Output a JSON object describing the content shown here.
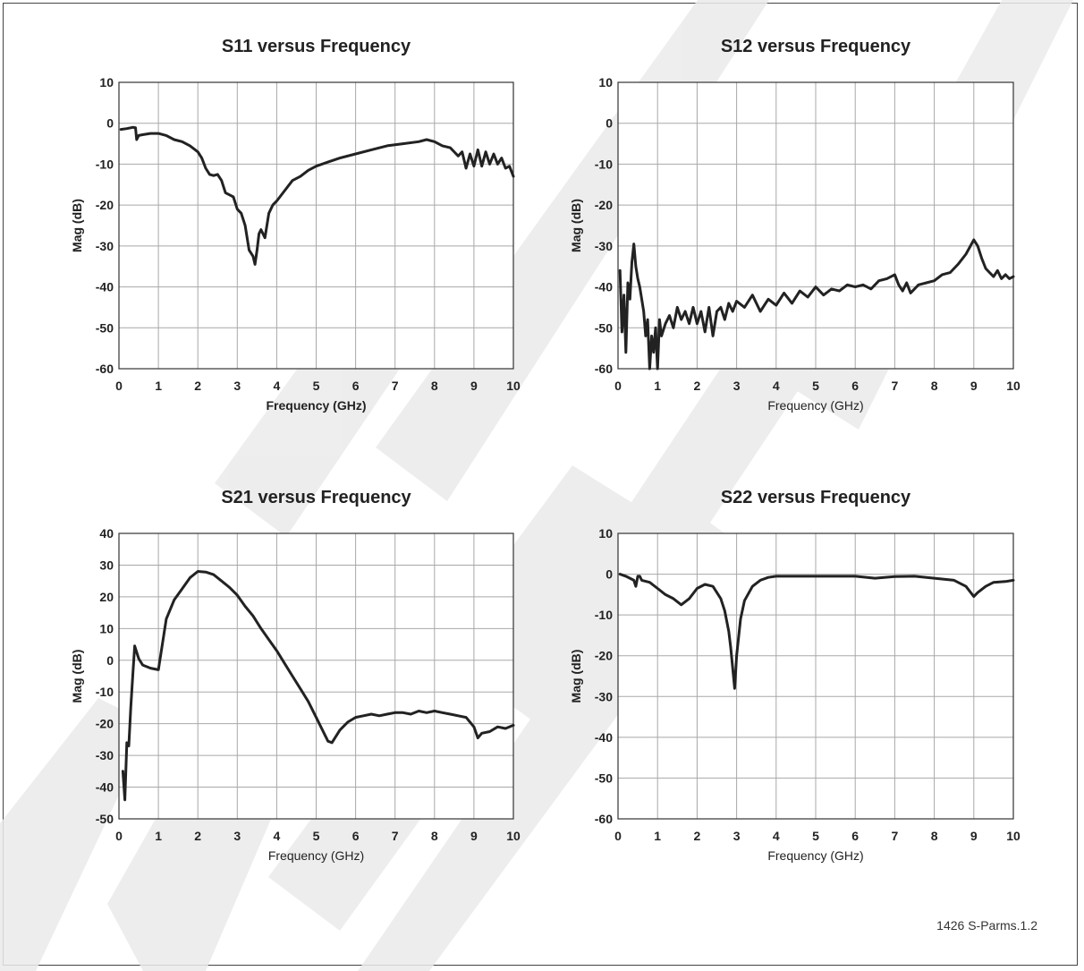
{
  "footer_label": "1426 S-Parms.1.2",
  "colors": {
    "line": "#222222",
    "grid": "#a8a8a8",
    "frame": "#333333",
    "watermark": "#e9e9e9"
  },
  "chart_data": [
    {
      "type": "line",
      "title": "S11 versus Frequency",
      "xlabel": "Frequency (GHz)",
      "xlabel_bold": true,
      "ylabel": "Mag (dB)",
      "xlim": [
        0,
        10
      ],
      "ylim": [
        -60,
        10
      ],
      "xticks": [
        0,
        1,
        2,
        3,
        4,
        5,
        6,
        7,
        8,
        9,
        10
      ],
      "yticks": [
        10,
        0,
        -10,
        -20,
        -30,
        -40,
        -50,
        -60
      ],
      "grid": true,
      "series": [
        {
          "x": [
            0.05,
            0.2,
            0.35,
            0.42,
            0.45,
            0.5,
            0.6,
            0.8,
            1.0,
            1.2,
            1.4,
            1.6,
            1.8,
            2.0,
            2.1,
            2.2,
            2.3,
            2.4,
            2.5,
            2.6,
            2.7,
            2.8,
            2.9,
            3.0,
            3.1,
            3.2,
            3.3,
            3.4,
            3.45,
            3.5,
            3.55,
            3.6,
            3.7,
            3.8,
            3.9,
            4.0,
            4.2,
            4.4,
            4.6,
            4.8,
            5.0,
            5.3,
            5.6,
            6.0,
            6.4,
            6.8,
            7.2,
            7.6,
            7.8,
            8.0,
            8.2,
            8.4,
            8.6,
            8.7,
            8.8,
            8.9,
            9.0,
            9.1,
            9.2,
            9.3,
            9.4,
            9.5,
            9.6,
            9.7,
            9.8,
            9.9,
            10.0
          ],
          "y": [
            -1.5,
            -1.3,
            -1.0,
            -1.1,
            -4.0,
            -3.0,
            -2.8,
            -2.5,
            -2.5,
            -3.0,
            -4.0,
            -4.5,
            -5.5,
            -7.0,
            -8.5,
            -11.0,
            -12.5,
            -12.8,
            -12.5,
            -14.0,
            -17.0,
            -17.5,
            -18.0,
            -21.0,
            -22.0,
            -25.0,
            -31.0,
            -32.5,
            -34.5,
            -31.0,
            -27.0,
            -26.0,
            -28.0,
            -22.0,
            -20.0,
            -19.0,
            -16.5,
            -14.0,
            -13.0,
            -11.5,
            -10.5,
            -9.5,
            -8.5,
            -7.5,
            -6.5,
            -5.5,
            -5.0,
            -4.5,
            -4.0,
            -4.5,
            -5.5,
            -6.0,
            -8.0,
            -7.0,
            -11.0,
            -7.5,
            -10.5,
            -6.5,
            -10.5,
            -7.0,
            -10.0,
            -7.5,
            -10.0,
            -8.5,
            -11.0,
            -10.5,
            -13.0
          ]
        }
      ]
    },
    {
      "type": "line",
      "title": "S12 versus Frequency",
      "xlabel": "Frequency (GHz)",
      "xlabel_bold": false,
      "ylabel": "Mag (dB)",
      "xlim": [
        0,
        10
      ],
      "ylim": [
        -60,
        10
      ],
      "xticks": [
        0,
        1,
        2,
        3,
        4,
        5,
        6,
        7,
        8,
        9,
        10
      ],
      "yticks": [
        10,
        0,
        -10,
        -20,
        -30,
        -40,
        -50,
        -60
      ],
      "grid": true,
      "series": [
        {
          "x": [
            0.05,
            0.1,
            0.15,
            0.2,
            0.25,
            0.3,
            0.35,
            0.4,
            0.45,
            0.5,
            0.55,
            0.6,
            0.65,
            0.7,
            0.75,
            0.8,
            0.85,
            0.9,
            0.95,
            1.0,
            1.05,
            1.1,
            1.2,
            1.3,
            1.4,
            1.5,
            1.6,
            1.7,
            1.8,
            1.9,
            2.0,
            2.1,
            2.2,
            2.3,
            2.4,
            2.5,
            2.6,
            2.7,
            2.8,
            2.9,
            3.0,
            3.2,
            3.4,
            3.6,
            3.8,
            4.0,
            4.2,
            4.4,
            4.6,
            4.8,
            5.0,
            5.2,
            5.4,
            5.6,
            5.8,
            6.0,
            6.2,
            6.4,
            6.6,
            6.8,
            7.0,
            7.1,
            7.2,
            7.3,
            7.4,
            7.6,
            7.8,
            8.0,
            8.2,
            8.4,
            8.6,
            8.8,
            9.0,
            9.1,
            9.2,
            9.3,
            9.4,
            9.5,
            9.6,
            9.7,
            9.8,
            9.9,
            10.0
          ],
          "y": [
            -36.0,
            -51.0,
            -42.0,
            -56.0,
            -39.0,
            -43.0,
            -34.0,
            -29.5,
            -35.0,
            -38.0,
            -40.0,
            -43.0,
            -46.0,
            -52.0,
            -48.0,
            -60.0,
            -52.0,
            -56.0,
            -50.0,
            -60.0,
            -48.0,
            -52.0,
            -49.0,
            -47.0,
            -50.0,
            -45.0,
            -48.0,
            -46.0,
            -49.0,
            -45.0,
            -49.0,
            -46.0,
            -51.0,
            -45.0,
            -52.0,
            -46.0,
            -45.0,
            -48.0,
            -44.0,
            -46.0,
            -43.5,
            -45.0,
            -42.0,
            -46.0,
            -43.0,
            -44.5,
            -41.5,
            -44.0,
            -41.0,
            -42.5,
            -40.0,
            -42.0,
            -40.5,
            -41.0,
            -39.5,
            -40.0,
            -39.5,
            -40.5,
            -38.5,
            -38.0,
            -37.0,
            -39.5,
            -41.0,
            -39.0,
            -41.5,
            -39.5,
            -39.0,
            -38.5,
            -37.0,
            -36.5,
            -34.5,
            -32.0,
            -28.5,
            -30.0,
            -33.0,
            -35.5,
            -36.5,
            -37.5,
            -36.0,
            -38.0,
            -37.0,
            -38.0,
            -37.5
          ]
        }
      ]
    },
    {
      "type": "line",
      "title": "S21 versus Frequency",
      "xlabel": "Frequency (GHz)",
      "xlabel_bold": false,
      "ylabel": "Mag (dB)",
      "xlim": [
        0,
        10
      ],
      "ylim": [
        -50,
        40
      ],
      "xticks": [
        0,
        1,
        2,
        3,
        4,
        5,
        6,
        7,
        8,
        9,
        10
      ],
      "yticks": [
        40,
        30,
        20,
        10,
        0,
        -10,
        -20,
        -30,
        -40,
        -50
      ],
      "grid": true,
      "series": [
        {
          "x": [
            0.1,
            0.15,
            0.2,
            0.25,
            0.3,
            0.35,
            0.4,
            0.5,
            0.6,
            0.8,
            1.0,
            1.1,
            1.2,
            1.4,
            1.6,
            1.8,
            2.0,
            2.2,
            2.4,
            2.6,
            2.8,
            3.0,
            3.2,
            3.4,
            3.6,
            3.8,
            4.0,
            4.2,
            4.4,
            4.6,
            4.8,
            5.0,
            5.2,
            5.3,
            5.4,
            5.6,
            5.8,
            6.0,
            6.2,
            6.4,
            6.6,
            6.8,
            7.0,
            7.2,
            7.4,
            7.6,
            7.8,
            8.0,
            8.2,
            8.4,
            8.6,
            8.8,
            9.0,
            9.1,
            9.2,
            9.4,
            9.6,
            9.8,
            10.0
          ],
          "y": [
            -35.0,
            -44.0,
            -26.0,
            -27.0,
            -15.0,
            -5.0,
            4.5,
            0.5,
            -1.5,
            -2.5,
            -3.0,
            5.0,
            13.0,
            19.0,
            22.5,
            26.0,
            28.0,
            27.8,
            27.0,
            25.0,
            23.0,
            20.5,
            17.0,
            14.0,
            10.0,
            6.5,
            3.0,
            -1.0,
            -5.0,
            -9.0,
            -13.0,
            -18.0,
            -23.0,
            -25.5,
            -26.0,
            -22.0,
            -19.5,
            -18.0,
            -17.5,
            -17.0,
            -17.5,
            -17.0,
            -16.5,
            -16.5,
            -17.0,
            -16.0,
            -16.5,
            -16.0,
            -16.5,
            -17.0,
            -17.5,
            -18.0,
            -21.0,
            -24.5,
            -23.0,
            -22.5,
            -21.0,
            -21.5,
            -20.5
          ]
        }
      ]
    },
    {
      "type": "line",
      "title": "S22 versus Frequency",
      "xlabel": "Frequency (GHz)",
      "xlabel_bold": false,
      "ylabel": "Mag (dB)",
      "xlim": [
        0,
        10
      ],
      "ylim": [
        -60,
        10
      ],
      "xticks": [
        0,
        1,
        2,
        3,
        4,
        5,
        6,
        7,
        8,
        9,
        10
      ],
      "yticks": [
        10,
        0,
        -10,
        -20,
        -30,
        -40,
        -50,
        -60
      ],
      "grid": true,
      "series": [
        {
          "x": [
            0.05,
            0.2,
            0.4,
            0.45,
            0.5,
            0.55,
            0.6,
            0.8,
            1.0,
            1.2,
            1.4,
            1.6,
            1.8,
            2.0,
            2.2,
            2.4,
            2.6,
            2.7,
            2.8,
            2.85,
            2.9,
            2.95,
            3.0,
            3.1,
            3.2,
            3.4,
            3.6,
            3.8,
            4.0,
            5.0,
            6.0,
            6.5,
            7.0,
            7.5,
            8.0,
            8.5,
            8.8,
            9.0,
            9.1,
            9.3,
            9.5,
            9.8,
            10.0
          ],
          "y": [
            0.0,
            -0.5,
            -1.5,
            -3.0,
            -0.5,
            -0.5,
            -1.5,
            -2.0,
            -3.5,
            -5.0,
            -6.0,
            -7.5,
            -6.0,
            -3.5,
            -2.5,
            -3.0,
            -6.0,
            -9.0,
            -14.0,
            -18.0,
            -23.0,
            -28.0,
            -20.0,
            -11.0,
            -6.5,
            -3.0,
            -1.5,
            -0.8,
            -0.5,
            -0.5,
            -0.5,
            -1.0,
            -0.6,
            -0.5,
            -1.0,
            -1.5,
            -3.0,
            -5.5,
            -4.5,
            -3.0,
            -2.0,
            -1.8,
            -1.5
          ]
        }
      ]
    }
  ]
}
